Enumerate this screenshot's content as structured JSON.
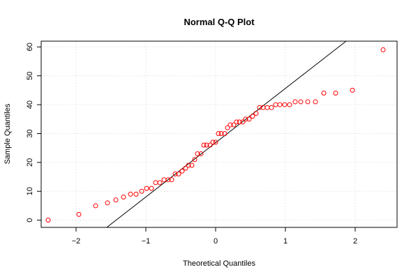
{
  "chart_data": {
    "type": "scatter",
    "title": "Normal Q-Q Plot",
    "xlabel": "Theoretical Quantiles",
    "ylabel": "Sample Quantiles",
    "xlim": [
      -2.5,
      2.6
    ],
    "ylim": [
      -2.5,
      62
    ],
    "x_ticks": [
      -2,
      -1,
      0,
      1,
      2
    ],
    "y_ticks": [
      0,
      10,
      20,
      30,
      40,
      50,
      60
    ],
    "grid": true,
    "point_color": "#ff0000",
    "reference_line": {
      "x1": -1.56,
      "y1": -2.5,
      "x2": 1.87,
      "y2": 62
    },
    "points": [
      {
        "x": -2.4,
        "y": 0
      },
      {
        "x": -1.96,
        "y": 2
      },
      {
        "x": -1.72,
        "y": 5
      },
      {
        "x": -1.55,
        "y": 6
      },
      {
        "x": -1.43,
        "y": 7
      },
      {
        "x": -1.32,
        "y": 8
      },
      {
        "x": -1.22,
        "y": 9
      },
      {
        "x": -1.14,
        "y": 9
      },
      {
        "x": -1.06,
        "y": 10
      },
      {
        "x": -0.99,
        "y": 11
      },
      {
        "x": -0.92,
        "y": 11
      },
      {
        "x": -0.86,
        "y": 13
      },
      {
        "x": -0.8,
        "y": 13
      },
      {
        "x": -0.74,
        "y": 14
      },
      {
        "x": -0.68,
        "y": 14
      },
      {
        "x": -0.63,
        "y": 14
      },
      {
        "x": -0.58,
        "y": 16
      },
      {
        "x": -0.53,
        "y": 16
      },
      {
        "x": -0.48,
        "y": 17
      },
      {
        "x": -0.43,
        "y": 18
      },
      {
        "x": -0.39,
        "y": 19
      },
      {
        "x": -0.34,
        "y": 19
      },
      {
        "x": -0.3,
        "y": 21
      },
      {
        "x": -0.26,
        "y": 23
      },
      {
        "x": -0.21,
        "y": 23
      },
      {
        "x": -0.17,
        "y": 26
      },
      {
        "x": -0.13,
        "y": 26
      },
      {
        "x": -0.08,
        "y": 26
      },
      {
        "x": -0.04,
        "y": 27
      },
      {
        "x": 0.0,
        "y": 27
      },
      {
        "x": 0.04,
        "y": 30
      },
      {
        "x": 0.08,
        "y": 30
      },
      {
        "x": 0.13,
        "y": 30
      },
      {
        "x": 0.17,
        "y": 32
      },
      {
        "x": 0.21,
        "y": 33
      },
      {
        "x": 0.26,
        "y": 33
      },
      {
        "x": 0.3,
        "y": 34
      },
      {
        "x": 0.34,
        "y": 34
      },
      {
        "x": 0.39,
        "y": 34
      },
      {
        "x": 0.43,
        "y": 35
      },
      {
        "x": 0.48,
        "y": 35
      },
      {
        "x": 0.53,
        "y": 36
      },
      {
        "x": 0.58,
        "y": 37
      },
      {
        "x": 0.63,
        "y": 39
      },
      {
        "x": 0.68,
        "y": 39
      },
      {
        "x": 0.74,
        "y": 39
      },
      {
        "x": 0.8,
        "y": 39
      },
      {
        "x": 0.86,
        "y": 40
      },
      {
        "x": 0.92,
        "y": 40
      },
      {
        "x": 0.99,
        "y": 40
      },
      {
        "x": 1.06,
        "y": 40
      },
      {
        "x": 1.14,
        "y": 41
      },
      {
        "x": 1.22,
        "y": 41
      },
      {
        "x": 1.32,
        "y": 41
      },
      {
        "x": 1.43,
        "y": 41
      },
      {
        "x": 1.55,
        "y": 44
      },
      {
        "x": 1.72,
        "y": 44
      },
      {
        "x": 1.96,
        "y": 45
      },
      {
        "x": 2.4,
        "y": 59
      }
    ]
  }
}
